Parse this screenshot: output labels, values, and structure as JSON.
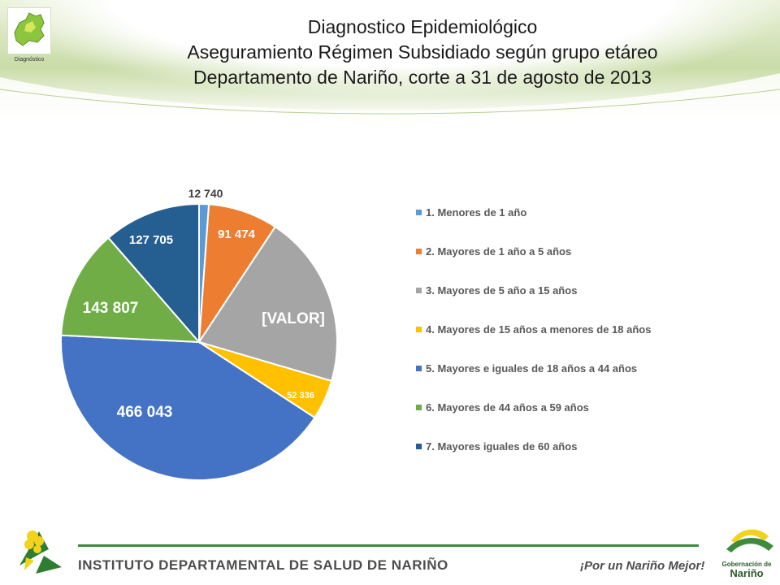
{
  "header": {
    "logo_caption": "Diagnóstico",
    "title_line1": "Diagnostico Epidemiológico",
    "title_line2": "Aseguramiento Régimen Subsidiado según grupo etáreo",
    "title_line3": "Departamento de Nariño,  corte a 31 de agosto de 2013"
  },
  "chart_data": {
    "type": "pie",
    "categories": [
      "1. Menores de 1 año",
      "2. Mayores de 1 año a 5 años",
      "3. Mayores de 5 año a 15 años",
      "4. Mayores de 15 años a menores de 18 años",
      "5. Mayores e iguales de 18 años a 44 años",
      "6. Mayores de 44 años a 59 años",
      "7. Mayores iguales de 60 años"
    ],
    "values": [
      12740,
      91474,
      227000,
      52336,
      466043,
      143807,
      127705
    ],
    "data_labels": [
      "12 740",
      "91 474",
      "[VALOR]",
      "52 336",
      "466 043",
      "143 807",
      "127 705"
    ],
    "colors": [
      "#5b9bd5",
      "#ed7d31",
      "#a5a5a5",
      "#ffc000",
      "#4472c4",
      "#70ad47",
      "#255e91"
    ],
    "legend_position": "right"
  },
  "footer": {
    "institute": "INSTITUTO DEPARTAMENTAL DE SALUD DE NARIÑO",
    "slogan": "¡Por un Nariño Mejor!",
    "gob_line1": "Gobernación de",
    "gob_line2": "Nariño"
  }
}
